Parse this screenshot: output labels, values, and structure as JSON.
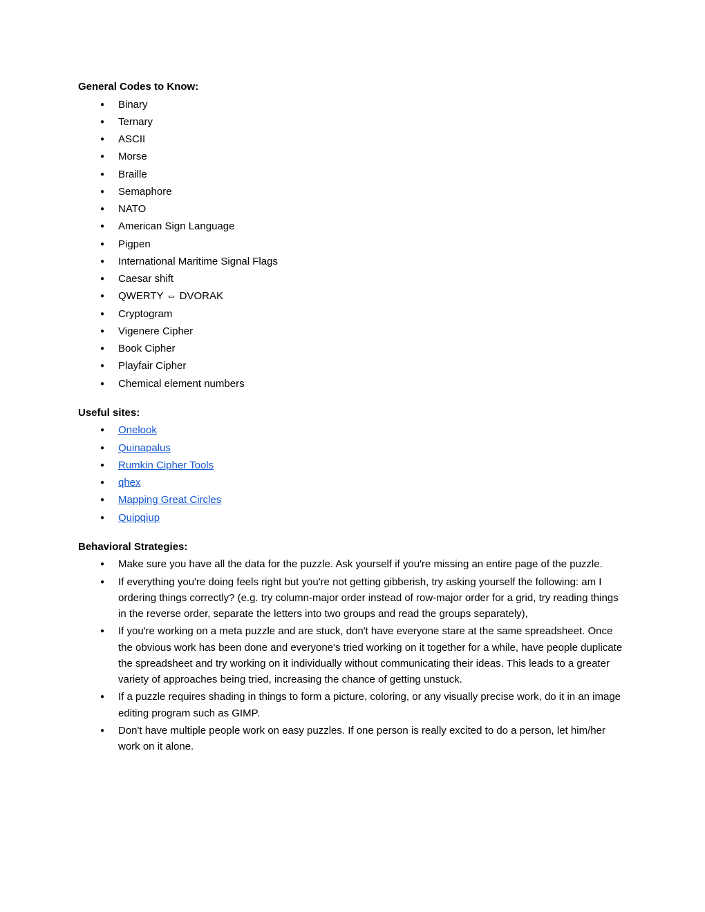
{
  "sections": {
    "codes": {
      "heading": "General Codes to Know:",
      "items": [
        "Binary",
        "Ternary",
        "ASCII",
        "Morse",
        "Braille",
        "Semaphore",
        "NATO",
        "American Sign Language",
        "Pigpen",
        "International Maritime Signal Flags",
        "Caesar shift",
        "QWERTY ⇔ DVORAK",
        "Cryptogram",
        "Vigenere Cipher",
        "Book Cipher",
        "Playfair Cipher",
        "Chemical element numbers"
      ]
    },
    "sites": {
      "heading": "Useful sites:",
      "items": [
        "Onelook",
        "Quinapalus",
        "Rumkin Cipher Tools",
        "qhex",
        "Mapping Great Circles",
        "Quipqiup"
      ]
    },
    "strategies": {
      "heading": "Behavioral Strategies:",
      "items": [
        "Make sure you have all the data for the puzzle. Ask yourself if you're missing an entire page of the puzzle.",
        "If everything you're doing feels right but you're not getting gibberish, try asking yourself the following: am I ordering things correctly? (e.g. try column-major order instead of row-major order for a grid, try reading things in the reverse order, separate the letters into two groups and read the groups separately),",
        "If you're working on a meta puzzle and are stuck, don't have everyone stare at the same spreadsheet. Once the obvious work has been done and everyone's tried working on it together for a while, have people duplicate the spreadsheet and try working on it individually without communicating their ideas. This leads to a greater variety of approaches being tried, increasing the chance of getting unstuck.",
        "If a puzzle requires shading in things to form a picture, coloring, or any visually precise work, do it in an image editing program such as GIMP.",
        "Don't have multiple people work on easy puzzles. If one person is really excited to do a person, let him/her work on it alone."
      ]
    }
  },
  "colors": {
    "text": "#000000",
    "link": "#1155cc",
    "background": "#ffffff"
  },
  "typography": {
    "font_family": "Arial",
    "font_size": 15,
    "heading_weight": "bold"
  }
}
